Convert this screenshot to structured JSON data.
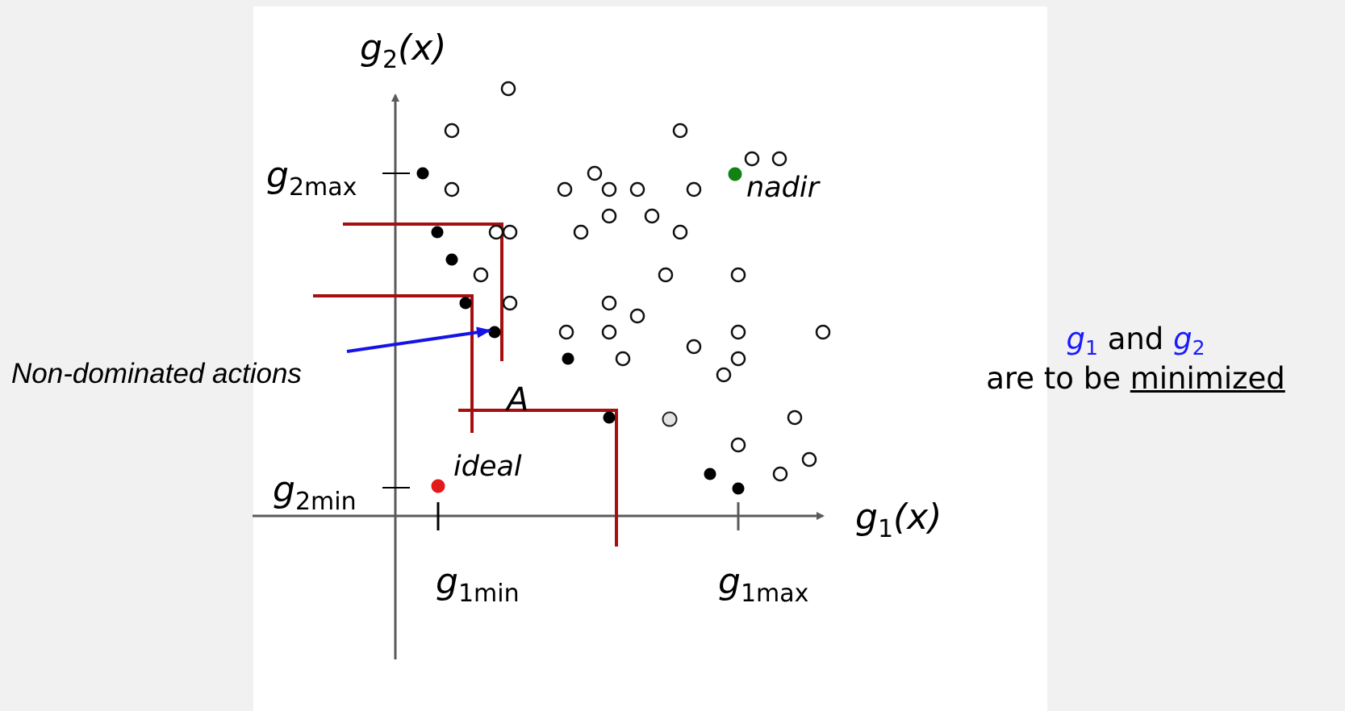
{
  "labels": {
    "y_axis": "g",
    "y_axis_sub": "2",
    "y_axis_arg": "(x)",
    "x_axis": "g",
    "x_axis_sub": "1",
    "x_axis_arg": "(x)",
    "g2max": "g",
    "g2max_sub": "2max",
    "g2min": "g",
    "g2min_sub": "2min",
    "g1min": "g",
    "g1min_sub": "1min",
    "g1max": "g",
    "g1max_sub": "1max",
    "nadir": "nadir",
    "ideal": "ideal",
    "point_a": "A",
    "callout": "Non-dominated actions"
  },
  "note": {
    "g1": "g",
    "g1_sub": "1",
    "and": "and",
    "g2": "g",
    "g2_sub": "2",
    "line2_prefix": "are to be",
    "line2_underlined": "minimized"
  },
  "colors": {
    "axis": "#5a5a5a",
    "dominance_lines": "#a50f0f",
    "ideal_point": "#e41a1a",
    "nadir_point": "#128212",
    "callout_arrow": "#1414e6",
    "note_variables": "#1a1aff"
  },
  "points": {
    "dominated": [
      [
        630,
        110
      ],
      [
        560,
        162
      ],
      [
        843,
        162
      ],
      [
        560,
        235
      ],
      [
        700,
        235
      ],
      [
        737,
        215
      ],
      [
        755,
        235
      ],
      [
        790,
        235
      ],
      [
        860,
        235
      ],
      [
        932,
        197
      ],
      [
        966,
        197
      ],
      [
        720,
        288
      ],
      [
        755,
        268
      ],
      [
        808,
        268
      ],
      [
        843,
        288
      ],
      [
        615,
        288
      ],
      [
        632,
        288
      ],
      [
        596,
        341
      ],
      [
        825,
        341
      ],
      [
        915,
        341
      ],
      [
        632,
        376
      ],
      [
        755,
        376
      ],
      [
        790,
        392
      ],
      [
        702,
        412
      ],
      [
        755,
        412
      ],
      [
        860,
        430
      ],
      [
        915,
        412
      ],
      [
        1020,
        412
      ],
      [
        772,
        445
      ],
      [
        915,
        445
      ],
      [
        897,
        465
      ],
      [
        985,
        518
      ],
      [
        915,
        552
      ],
      [
        967,
        588
      ],
      [
        1003,
        570
      ]
    ],
    "non_dominated": [
      [
        524,
        215
      ],
      [
        542,
        288
      ],
      [
        560,
        322
      ],
      [
        577,
        376
      ],
      [
        613,
        412
      ],
      [
        704,
        445
      ],
      [
        755,
        518
      ],
      [
        880,
        588
      ],
      [
        915,
        606
      ]
    ],
    "gray": [
      [
        830,
        520
      ]
    ],
    "ideal": [
      543,
      603
    ],
    "nadir": [
      911,
      216
    ]
  }
}
